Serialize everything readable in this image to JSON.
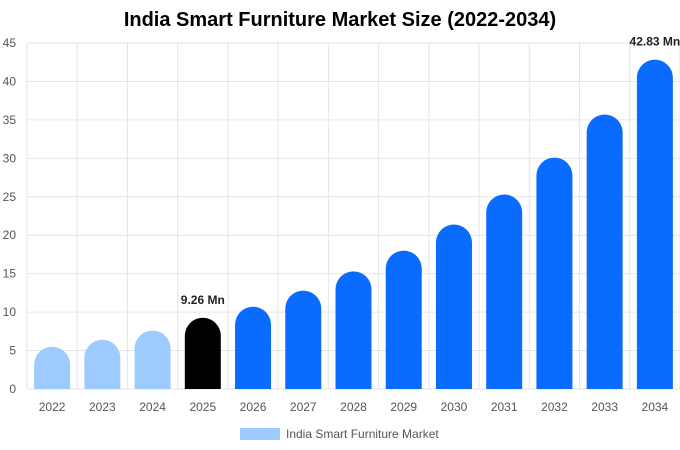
{
  "chart_data": {
    "type": "bar",
    "title": "India Smart Furniture Market Size (2022-2034)",
    "xlabel": "",
    "ylabel": "",
    "categories": [
      "2022",
      "2023",
      "2024",
      "2025",
      "2026",
      "2027",
      "2028",
      "2029",
      "2030",
      "2031",
      "2032",
      "2033",
      "2034"
    ],
    "series": [
      {
        "name": "India Smart Furniture Market",
        "values": [
          5.5,
          6.4,
          7.6,
          9.26,
          10.7,
          12.8,
          15.3,
          18.0,
          21.4,
          25.3,
          30.1,
          35.7,
          42.83
        ]
      }
    ],
    "ylim": [
      0,
      45
    ],
    "yticks": [
      0,
      5,
      10,
      15,
      20,
      25,
      30,
      35,
      40,
      45
    ],
    "data_labels": [
      {
        "category": "2025",
        "text": "9.26 Mn"
      },
      {
        "category": "2034",
        "text": "42.83 Mn"
      }
    ],
    "colors": {
      "historical": "#9ecbff",
      "current": "#000000",
      "forecast": "#0a6cff",
      "grid": "#e6e6e6"
    },
    "bar_color_groups": [
      "historical",
      "historical",
      "historical",
      "current",
      "forecast",
      "forecast",
      "forecast",
      "forecast",
      "forecast",
      "forecast",
      "forecast",
      "forecast",
      "forecast"
    ],
    "grid": true,
    "legend": "bottom-center"
  }
}
